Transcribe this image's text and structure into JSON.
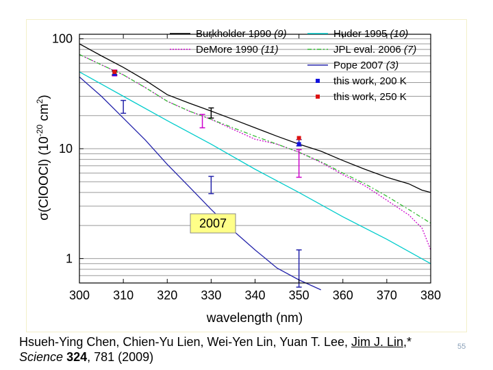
{
  "chart_data": {
    "type": "line",
    "xlabel": "wavelength (nm)",
    "ylabel_parts": [
      "σ(ClOOCl) (10",
      "-20",
      " cm",
      "2",
      ")"
    ],
    "xlim": [
      300,
      380
    ],
    "ylim": [
      0.6,
      110
    ],
    "yscale": "log",
    "x_ticks": [
      300,
      310,
      320,
      330,
      340,
      350,
      360,
      370,
      380
    ],
    "y_ticks": [
      {
        "value": 1,
        "label": "1"
      },
      {
        "value": 10,
        "label": "10"
      },
      {
        "value": 100,
        "label": "100"
      }
    ],
    "grid": "horizontal",
    "legend_position": "top-right",
    "annotation": "2007",
    "series": [
      {
        "name": "Burkholder 1990",
        "ref": "(9)",
        "color": "#000000",
        "dash": "solid",
        "x": [
          300,
          305,
          310,
          315,
          320,
          325,
          330,
          335,
          340,
          345,
          350,
          355,
          360,
          365,
          370,
          375,
          378,
          380
        ],
        "y": [
          90,
          70,
          55,
          42,
          31,
          26,
          22,
          18.5,
          15.5,
          13,
          11,
          9.5,
          7.8,
          6.5,
          5.5,
          4.8,
          4.2,
          4.0
        ]
      },
      {
        "name": "Huder 1995",
        "ref": "(10)",
        "color": "#00cccc",
        "dash": "solid",
        "x": [
          300,
          310,
          320,
          330,
          340,
          350,
          360,
          370,
          380
        ],
        "y": [
          50,
          30,
          18,
          11,
          6.5,
          4,
          2.4,
          1.5,
          0.9
        ]
      },
      {
        "name": "DeMore 1990",
        "ref": "(11)",
        "color": "#cc00cc",
        "dash": "dotted",
        "x": [
          300,
          305,
          310,
          315,
          320,
          325,
          330,
          335,
          340,
          345,
          350,
          355,
          360,
          365,
          370,
          375,
          378,
          380
        ],
        "y": [
          72,
          58,
          47,
          36,
          27,
          22,
          18.5,
          15,
          12.2,
          11,
          9.3,
          7.5,
          5.8,
          4.6,
          3.4,
          2.5,
          1.9,
          1.2
        ]
      },
      {
        "name": "JPL eval. 2006",
        "ref": "(7)",
        "color": "#33bb33",
        "dash": "dashdot",
        "x": [
          300,
          305,
          310,
          315,
          320,
          325,
          330,
          335,
          340,
          345,
          350,
          355,
          360,
          365,
          370,
          375,
          380
        ],
        "y": [
          72,
          58,
          47,
          36,
          27,
          22,
          18.5,
          15.5,
          13,
          11,
          9.3,
          7.6,
          6,
          4.8,
          3.7,
          2.8,
          2.1
        ]
      },
      {
        "name": "Pope 2007",
        "ref": "(3)",
        "color": "#2222aa",
        "dash": "solid",
        "x": [
          300,
          305,
          310,
          315,
          320,
          325,
          330,
          335,
          340,
          345,
          350,
          355
        ],
        "y": [
          45,
          30,
          19,
          12,
          7.2,
          4.5,
          2.8,
          1.8,
          1.2,
          0.82,
          0.64,
          0.52
        ]
      }
    ],
    "error_bars": [
      {
        "x": 308,
        "y": 49,
        "lo": 46,
        "hi": 52,
        "color": "#cc00cc"
      },
      {
        "x": 308,
        "y": 49,
        "lo": 47,
        "hi": 51,
        "color": "#000000"
      },
      {
        "x": 310,
        "y": 24,
        "lo": 21,
        "hi": 27.5,
        "color": "#2222aa"
      },
      {
        "x": 328,
        "y": 18,
        "lo": 15.5,
        "hi": 20.5,
        "color": "#cc00cc"
      },
      {
        "x": 330,
        "y": 21,
        "lo": 19,
        "hi": 23.5,
        "color": "#000000"
      },
      {
        "x": 330,
        "y": 4.7,
        "lo": 3.9,
        "hi": 5.6,
        "color": "#2222aa"
      },
      {
        "x": 350,
        "y": 7.5,
        "lo": 5.5,
        "hi": 9.8,
        "color": "#cc00cc"
      },
      {
        "x": 350,
        "y": 11.3,
        "lo": 10.6,
        "hi": 12.1,
        "color": "#2222aa"
      },
      {
        "x": 350,
        "y": 0.78,
        "lo": 0.55,
        "hi": 1.2,
        "color": "#2222aa"
      }
    ],
    "markers": [
      {
        "series": "this work, 200 K",
        "color": "#1111dd",
        "points": [
          {
            "x": 308,
            "y": 48
          },
          {
            "x": 350,
            "y": 11
          }
        ]
      },
      {
        "series": "this work, 250 K",
        "color": "#dd1111",
        "points": [
          {
            "x": 308,
            "y": 50
          },
          {
            "x": 350,
            "y": 12.5
          }
        ]
      }
    ],
    "legend": [
      {
        "label": "Burkholder 1990 ",
        "ref": "(9)",
        "color": "#000000",
        "kind": "line",
        "dash": "solid"
      },
      {
        "label": "Huder 1995 ",
        "ref": "(10)",
        "color": "#00cccc",
        "kind": "line",
        "dash": "solid"
      },
      {
        "label": "DeMore 1990 ",
        "ref": "(11)",
        "color": "#cc00cc",
        "kind": "line",
        "dash": "dotted"
      },
      {
        "label": "JPL eval. 2006 ",
        "ref": "(7)",
        "color": "#33bb33",
        "kind": "line",
        "dash": "dashdot"
      },
      {
        "label": "Pope 2007 ",
        "ref": "(3)",
        "color": "#2222aa",
        "kind": "line",
        "dash": "solid"
      },
      {
        "label": "this work, 200 K",
        "ref": "",
        "color": "#1111dd",
        "kind": "marker"
      },
      {
        "label": "this work, 250 K",
        "ref": "",
        "color": "#dd1111",
        "kind": "marker"
      }
    ]
  },
  "citation": {
    "authors_plain": "Hsueh-Ying Chen, Chien-Yu Lien, Wei-Yen Lin, Yuan T. Lee, ",
    "authors_underlined": "Jim J. Lin",
    "authors_suffix": ",*",
    "journal": "Science",
    "volume": "324",
    "pages_year": ", 781 (2009)"
  },
  "page_number": "55"
}
